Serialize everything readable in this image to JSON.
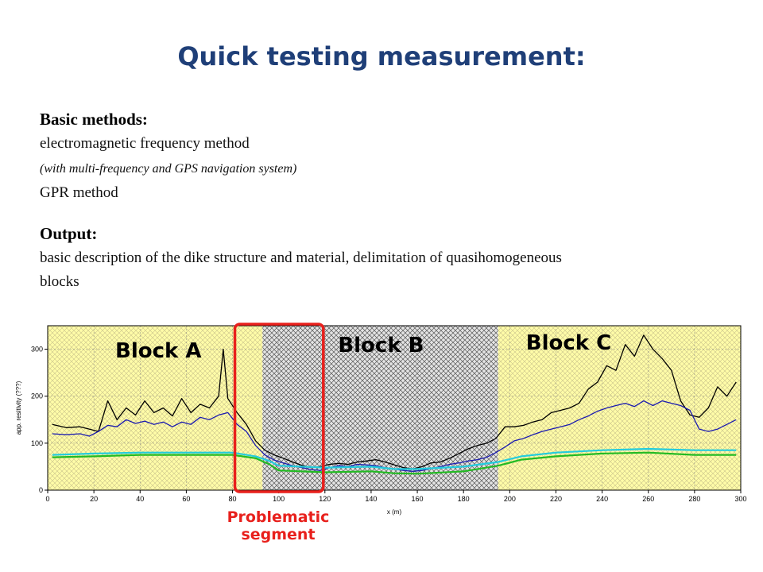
{
  "title": "Quick testing measurement:",
  "basic": {
    "heading": "Basic methods:",
    "line1": "electromagnetic frequency method",
    "line2": "(with multi-frequency and GPS navigation system)",
    "line3": "GPR method"
  },
  "output": {
    "heading": "Output:",
    "text1": "basic description of the dike structure and material, delimitation of quasihomogeneous",
    "text2": "blocks"
  },
  "problem": {
    "line1": "Problematic",
    "line2": "segment"
  },
  "chart_data": {
    "type": "line",
    "xlabel": "x (m)",
    "ylabel": "app. resitivity (???)",
    "xlim": [
      0,
      300
    ],
    "ylim": [
      0,
      350
    ],
    "xticks": [
      0,
      20,
      40,
      60,
      80,
      100,
      120,
      140,
      160,
      180,
      200,
      220,
      240,
      260,
      280,
      300
    ],
    "yticks": [
      0,
      100,
      200,
      300
    ],
    "blocks": [
      {
        "label": "Block A",
        "x_start": 0,
        "x_end": 93,
        "fill": "#fffca8",
        "pattern": "yellow-hatch"
      },
      {
        "label": "Block B",
        "x_start": 93,
        "x_end": 195,
        "fill": "#d8d8d8",
        "pattern": "dark-hatch"
      },
      {
        "label": "Block C",
        "x_start": 195,
        "x_end": 300,
        "fill": "#fffca8",
        "pattern": "yellow-hatch"
      }
    ],
    "highlight": {
      "x_start": 80,
      "x_end": 120,
      "color": "#e8201c"
    },
    "series": [
      {
        "color": "#000000",
        "x": [
          2,
          8,
          14,
          18,
          22,
          26,
          30,
          34,
          38,
          42,
          46,
          50,
          54,
          58,
          62,
          66,
          70,
          74,
          76,
          78,
          80,
          82,
          86,
          90,
          94,
          98,
          102,
          106,
          110,
          114,
          118,
          122,
          126,
          130,
          134,
          138,
          142,
          146,
          150,
          154,
          158,
          162,
          166,
          170,
          174,
          178,
          182,
          186,
          190,
          194,
          198,
          202,
          206,
          210,
          214,
          218,
          222,
          226,
          230,
          234,
          238,
          242,
          246,
          250,
          254,
          258,
          262,
          266,
          270,
          274,
          278,
          282,
          286,
          290,
          294,
          298
        ],
        "y": [
          140,
          133,
          135,
          130,
          125,
          190,
          150,
          175,
          160,
          190,
          165,
          175,
          158,
          195,
          165,
          183,
          175,
          200,
          300,
          195,
          180,
          165,
          140,
          105,
          85,
          75,
          68,
          60,
          53,
          48,
          50,
          55,
          57,
          55,
          60,
          62,
          65,
          60,
          54,
          48,
          45,
          50,
          58,
          60,
          68,
          78,
          88,
          95,
          100,
          110,
          135,
          135,
          138,
          145,
          150,
          165,
          170,
          175,
          185,
          215,
          230,
          265,
          255,
          310,
          285,
          330,
          300,
          280,
          255,
          190,
          160,
          155,
          175,
          220,
          200,
          230
        ]
      },
      {
        "color": "#1a1ab0",
        "x": [
          2,
          8,
          14,
          18,
          22,
          26,
          30,
          34,
          38,
          42,
          46,
          50,
          54,
          58,
          62,
          66,
          70,
          74,
          78,
          82,
          86,
          90,
          94,
          98,
          102,
          106,
          110,
          114,
          118,
          122,
          126,
          130,
          134,
          138,
          142,
          146,
          150,
          154,
          158,
          162,
          166,
          170,
          174,
          178,
          182,
          186,
          190,
          194,
          198,
          202,
          206,
          210,
          214,
          218,
          222,
          226,
          230,
          234,
          238,
          242,
          246,
          250,
          254,
          258,
          262,
          266,
          270,
          274,
          278,
          282,
          286,
          290,
          294,
          298
        ],
        "y": [
          120,
          118,
          120,
          115,
          125,
          138,
          135,
          150,
          142,
          147,
          140,
          145,
          135,
          145,
          140,
          155,
          150,
          160,
          165,
          140,
          125,
          95,
          75,
          64,
          58,
          52,
          48,
          44,
          42,
          48,
          52,
          50,
          55,
          54,
          52,
          48,
          45,
          42,
          40,
          42,
          46,
          50,
          55,
          58,
          62,
          65,
          70,
          80,
          92,
          105,
          110,
          118,
          125,
          130,
          135,
          140,
          150,
          158,
          168,
          175,
          180,
          185,
          178,
          190,
          180,
          190,
          185,
          180,
          170,
          130,
          125,
          130,
          140,
          150
        ]
      },
      {
        "color": "#22ccdd",
        "x": [
          2,
          20,
          40,
          60,
          80,
          90,
          96,
          100,
          120,
          140,
          150,
          160,
          180,
          195,
          205,
          220,
          240,
          260,
          280,
          298
        ],
        "y": [
          75,
          78,
          80,
          80,
          80,
          72,
          62,
          52,
          48,
          50,
          45,
          45,
          50,
          60,
          72,
          80,
          85,
          88,
          85,
          85
        ]
      },
      {
        "color": "#22bb22",
        "x": [
          2,
          20,
          40,
          60,
          80,
          90,
          96,
          100,
          120,
          140,
          150,
          160,
          180,
          195,
          205,
          220,
          240,
          260,
          280,
          298
        ],
        "y": [
          70,
          72,
          75,
          75,
          75,
          68,
          55,
          42,
          38,
          40,
          36,
          35,
          40,
          52,
          65,
          72,
          78,
          80,
          75,
          75
        ]
      }
    ]
  }
}
